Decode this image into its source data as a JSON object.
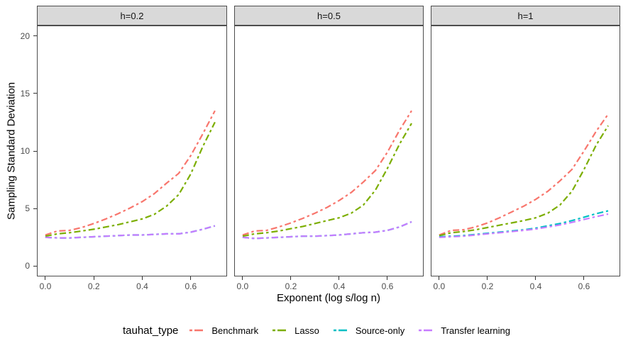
{
  "palette": {
    "benchmark": "#F8766D",
    "lasso": "#7CAE00",
    "source_only": "#00BFC4",
    "transfer_learning": "#C77CFF",
    "strip_fill": "#D9D9D9",
    "panel_border": "#4D4D4D",
    "tick_color": "#333333",
    "tick_text": "#4D4D4D"
  },
  "chart_data": {
    "type": "line",
    "title": "",
    "xlabel": "Exponent (log s/log n)",
    "ylabel": "Sampling Standard Deviation",
    "linetype": "twodash",
    "grid": false,
    "xlim": [
      -0.035,
      0.75
    ],
    "ylim": [
      -0.9,
      20.9
    ],
    "x_ticks": [
      0.0,
      0.2,
      0.4,
      0.6
    ],
    "x_tick_labels": [
      "0.0",
      "0.2",
      "0.4",
      "0.6"
    ],
    "y_ticks": [
      0,
      5,
      10,
      15,
      20
    ],
    "y_tick_labels": [
      "0",
      "5",
      "10",
      "15",
      "20"
    ],
    "legend": {
      "title": "tauhat_type",
      "position": "bottom",
      "entries": [
        {
          "label": "Benchmark",
          "color": "#F8766D"
        },
        {
          "label": "Lasso",
          "color": "#7CAE00"
        },
        {
          "label": "Source-only",
          "color": "#00BFC4"
        },
        {
          "label": "Transfer learning",
          "color": "#C77CFF"
        }
      ]
    },
    "x": [
      0,
      0.05,
      0.1,
      0.15,
      0.2,
      0.25,
      0.3,
      0.35,
      0.4,
      0.45,
      0.5,
      0.55,
      0.6,
      0.65,
      0.7
    ],
    "facets": [
      {
        "label": "h=0.2",
        "series": [
          {
            "name": "Benchmark",
            "color": "#F8766D",
            "values": [
              2.7,
              3.05,
              3.1,
              3.35,
              3.7,
              4.1,
              4.55,
              5.05,
              5.6,
              6.3,
              7.2,
              8.05,
              9.6,
              11.5,
              13.5
            ]
          },
          {
            "name": "Lasso",
            "color": "#7CAE00",
            "values": [
              2.6,
              2.8,
              2.9,
              3.05,
              3.2,
              3.4,
              3.6,
              3.85,
              4.1,
              4.5,
              5.2,
              6.2,
              8.0,
              10.4,
              12.5
            ]
          },
          {
            "name": "Source-only",
            "color": "#00BFC4",
            "values": [
              2.5,
              2.45,
              2.45,
              2.5,
              2.55,
              2.6,
              2.65,
              2.7,
              2.7,
              2.75,
              2.8,
              2.8,
              2.95,
              3.2,
              3.5
            ]
          },
          {
            "name": "Transfer learning",
            "color": "#C77CFF",
            "values": [
              2.5,
              2.45,
              2.45,
              2.5,
              2.55,
              2.6,
              2.65,
              2.7,
              2.7,
              2.75,
              2.8,
              2.8,
              2.95,
              3.2,
              3.5
            ]
          }
        ]
      },
      {
        "label": "h=0.5",
        "series": [
          {
            "name": "Benchmark",
            "color": "#F8766D",
            "values": [
              2.7,
              3.05,
              3.1,
              3.4,
              3.75,
              4.15,
              4.6,
              5.1,
              5.7,
              6.4,
              7.3,
              8.3,
              9.9,
              11.8,
              13.5
            ]
          },
          {
            "name": "Lasso",
            "color": "#7CAE00",
            "values": [
              2.6,
              2.8,
              2.9,
              3.05,
              3.25,
              3.45,
              3.7,
              3.95,
              4.2,
              4.6,
              5.3,
              6.6,
              8.5,
              10.6,
              12.4
            ]
          },
          {
            "name": "Source-only",
            "color": "#00BFC4",
            "values": [
              2.5,
              2.4,
              2.45,
              2.5,
              2.55,
              2.6,
              2.6,
              2.65,
              2.7,
              2.8,
              2.9,
              2.95,
              3.1,
              3.4,
              3.85
            ]
          },
          {
            "name": "Transfer learning",
            "color": "#C77CFF",
            "values": [
              2.5,
              2.4,
              2.45,
              2.5,
              2.55,
              2.6,
              2.6,
              2.65,
              2.7,
              2.8,
              2.9,
              2.95,
              3.1,
              3.4,
              3.85
            ]
          }
        ]
      },
      {
        "label": "h=1",
        "series": [
          {
            "name": "Benchmark",
            "color": "#F8766D",
            "values": [
              2.7,
              3.1,
              3.15,
              3.4,
              3.75,
              4.2,
              4.7,
              5.2,
              5.8,
              6.5,
              7.4,
              8.4,
              10.0,
              11.7,
              13.2
            ]
          },
          {
            "name": "Lasso",
            "color": "#7CAE00",
            "values": [
              2.65,
              2.9,
              3.0,
              3.15,
              3.35,
              3.55,
              3.75,
              3.95,
              4.2,
              4.6,
              5.3,
              6.5,
              8.4,
              10.5,
              12.2
            ]
          },
          {
            "name": "Source-only",
            "color": "#00BFC4",
            "values": [
              2.55,
              2.6,
              2.65,
              2.75,
              2.85,
              2.95,
              3.05,
              3.15,
              3.3,
              3.5,
              3.7,
              3.95,
              4.25,
              4.55,
              4.8
            ]
          },
          {
            "name": "Transfer learning",
            "color": "#C77CFF",
            "values": [
              2.5,
              2.55,
              2.6,
              2.7,
              2.8,
              2.9,
              3.0,
              3.1,
              3.22,
              3.4,
              3.58,
              3.8,
              4.05,
              4.3,
              4.52
            ]
          }
        ]
      }
    ]
  }
}
